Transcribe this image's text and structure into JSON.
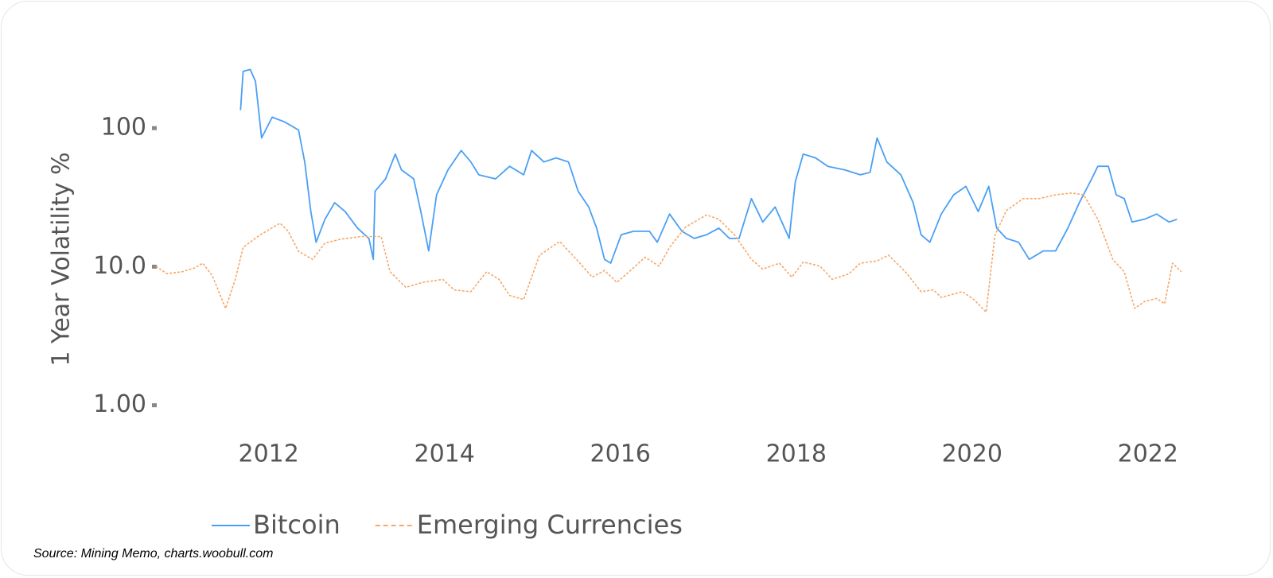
{
  "chart_data": {
    "type": "line",
    "y_label": "1 Year Volatility %",
    "source": "Source: Mining Memo, charts.woobull.com",
    "log_y": true,
    "xlim": [
      2010.7,
      2022.4
    ],
    "xticks": [
      2012,
      2014,
      2016,
      2018,
      2020,
      2022
    ],
    "ylim": [
      0.67,
      270
    ],
    "yticks": [
      {
        "value": 1,
        "label": "1.00"
      },
      {
        "value": 10,
        "label": "10.0"
      },
      100
    ],
    "legend": "bottom-left",
    "series": [
      {
        "name": "Bitcoin",
        "color": "#4a9ff5",
        "dash": false,
        "x": [
          2011.68,
          2011.71,
          2011.79,
          2011.85,
          2011.92,
          2012.04,
          2012.18,
          2012.34,
          2012.41,
          2012.48,
          2012.54,
          2012.64,
          2012.75,
          2012.87,
          2013.01,
          2013.14,
          2013.19,
          2013.21,
          2013.33,
          2013.44,
          2013.51,
          2013.65,
          2013.73,
          2013.82,
          2013.91,
          2014.04,
          2014.19,
          2014.3,
          2014.39,
          2014.58,
          2014.74,
          2014.9,
          2014.99,
          2015.13,
          2015.27,
          2015.41,
          2015.52,
          2015.64,
          2015.73,
          2015.82,
          2015.89,
          2016.01,
          2016.15,
          2016.33,
          2016.42,
          2016.56,
          2016.7,
          2016.84,
          2016.98,
          2017.12,
          2017.24,
          2017.35,
          2017.49,
          2017.62,
          2017.76,
          2017.92,
          2017.99,
          2018.08,
          2018.22,
          2018.36,
          2018.55,
          2018.73,
          2018.84,
          2018.92,
          2019.03,
          2019.19,
          2019.33,
          2019.42,
          2019.52,
          2019.65,
          2019.79,
          2019.93,
          2020.07,
          2020.19,
          2020.28,
          2020.39,
          2020.53,
          2020.65,
          2020.81,
          2020.95,
          2021.09,
          2021.22,
          2021.36,
          2021.43,
          2021.55,
          2021.64,
          2021.73,
          2021.82,
          2021.96,
          2022.1,
          2022.24,
          2022.33
        ],
        "values": [
          135,
          257,
          265,
          218,
          85,
          120,
          111,
          97,
          57,
          25,
          15,
          22,
          29,
          25,
          19,
          16,
          11.3,
          35,
          43,
          65,
          50,
          43,
          25,
          13,
          33,
          50,
          69,
          57,
          46,
          43,
          53,
          46,
          69,
          57,
          61,
          57,
          35,
          27,
          19,
          11.3,
          10.6,
          17,
          18,
          18,
          15,
          24,
          18,
          16,
          17,
          19,
          16,
          16,
          31,
          21,
          27,
          16,
          41,
          65,
          61,
          53,
          50,
          46,
          48,
          85,
          57,
          46,
          29,
          17,
          15,
          24,
          33,
          38,
          25,
          38,
          19,
          16,
          15,
          11.3,
          13,
          13,
          19,
          29,
          43,
          53,
          53,
          33,
          31,
          21,
          22,
          24,
          21,
          22
        ]
      },
      {
        "name": "Emerging Currencies",
        "color": "#f5a86a",
        "dash": true,
        "x": [
          2010.72,
          2010.84,
          2011.02,
          2011.16,
          2011.25,
          2011.36,
          2011.51,
          2011.62,
          2011.71,
          2011.9,
          2012.13,
          2012.22,
          2012.34,
          2012.5,
          2012.64,
          2012.82,
          2013.05,
          2013.28,
          2013.38,
          2013.56,
          2013.75,
          2013.98,
          2014.11,
          2014.3,
          2014.48,
          2014.62,
          2014.74,
          2014.9,
          2015.08,
          2015.31,
          2015.5,
          2015.68,
          2015.82,
          2015.96,
          2016.1,
          2016.28,
          2016.44,
          2016.56,
          2016.74,
          2016.98,
          2017.12,
          2017.3,
          2017.49,
          2017.62,
          2017.81,
          2017.95,
          2018.08,
          2018.27,
          2018.41,
          2018.6,
          2018.73,
          2018.92,
          2019.05,
          2019.24,
          2019.42,
          2019.56,
          2019.65,
          2019.89,
          2020.02,
          2020.16,
          2020.26,
          2020.39,
          2020.58,
          2020.76,
          2020.95,
          2021.13,
          2021.27,
          2021.43,
          2021.6,
          2021.73,
          2021.85,
          2021.96,
          2022.1,
          2022.19,
          2022.28,
          2022.38
        ],
        "values": [
          10.1,
          8.9,
          9.2,
          9.8,
          10.6,
          8.6,
          5.0,
          8.1,
          13.8,
          16.9,
          20.6,
          18.1,
          12.9,
          11.3,
          14.8,
          15.8,
          16.5,
          16.5,
          9.2,
          7.1,
          7.7,
          8.1,
          6.8,
          6.6,
          9.2,
          8.1,
          6.2,
          5.8,
          12.1,
          15.2,
          11.3,
          8.4,
          9.4,
          7.7,
          9.2,
          11.7,
          10.1,
          13.8,
          19.3,
          23.6,
          22.0,
          16.9,
          11.3,
          9.6,
          10.6,
          8.4,
          10.8,
          10.1,
          8.1,
          8.9,
          10.6,
          11.0,
          12.1,
          9.2,
          6.6,
          6.8,
          6.0,
          6.6,
          5.8,
          4.7,
          16.9,
          25.4,
          31.0,
          31.0,
          33.0,
          34.0,
          33.0,
          22.0,
          11.3,
          9.2,
          5.0,
          5.6,
          5.9,
          5.4,
          10.6,
          9.2
        ]
      }
    ]
  }
}
